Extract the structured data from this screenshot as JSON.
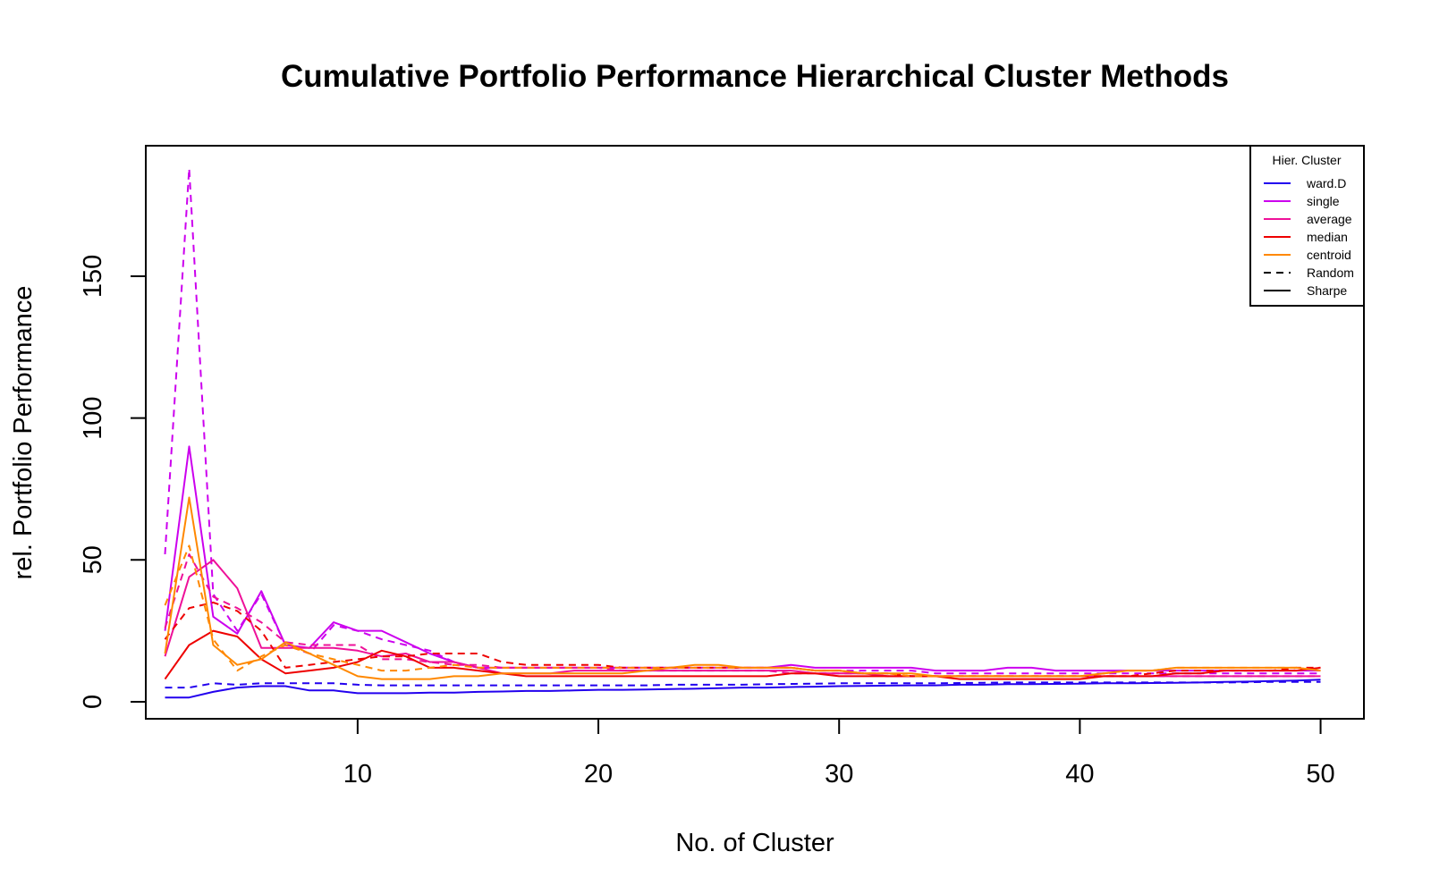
{
  "chart_data": {
    "type": "line",
    "title": "Cumulative Portfolio Performance Hierarchical Cluster Methods",
    "xlabel": "No. of Cluster",
    "ylabel": "rel. Portfolio Performance",
    "xlim": [
      1.2,
      51.8
    ],
    "ylim": [
      -6,
      196
    ],
    "x_ticks": [
      10,
      20,
      30,
      40,
      50
    ],
    "y_ticks": [
      0,
      50,
      100,
      150
    ],
    "grid": false,
    "legend": {
      "title": "Hier. Cluster",
      "placement": "top-right",
      "entries": [
        {
          "label": "ward.D",
          "color": "#2200ee",
          "dash": "solid"
        },
        {
          "label": "single",
          "color": "#cc00ee",
          "dash": "solid"
        },
        {
          "label": "average",
          "color": "#ee1199",
          "dash": "solid"
        },
        {
          "label": "median",
          "color": "#ee0000",
          "dash": "solid"
        },
        {
          "label": "centroid",
          "color": "#ff8800",
          "dash": "solid"
        },
        {
          "label": "Random",
          "color": "#000000",
          "dash": "dashed"
        },
        {
          "label": "Sharpe",
          "color": "#000000",
          "dash": "solid"
        }
      ]
    },
    "x": [
      2,
      3,
      4,
      5,
      6,
      7,
      8,
      9,
      10,
      11,
      12,
      13,
      14,
      15,
      16,
      17,
      18,
      19,
      20,
      21,
      22,
      23,
      24,
      25,
      26,
      27,
      28,
      29,
      30,
      31,
      32,
      33,
      34,
      35,
      36,
      37,
      38,
      39,
      40,
      41,
      42,
      43,
      44,
      45,
      46,
      47,
      48,
      49,
      50
    ],
    "series": [
      {
        "method": "ward.D",
        "type": "Sharpe",
        "color": "#2200ee",
        "dash": "solid",
        "values": [
          1.5,
          1.5,
          3.5,
          5,
          5.5,
          5.5,
          4,
          4,
          3,
          3,
          3,
          3.2,
          3.2,
          3.5,
          3.6,
          3.8,
          3.8,
          4,
          4.2,
          4.2,
          4.3,
          4.5,
          4.6,
          4.8,
          5,
          5,
          5.2,
          5.3,
          5.5,
          5.6,
          5.7,
          5.8,
          5.8,
          6,
          6,
          6.2,
          6.2,
          6.3,
          6.4,
          6.5,
          6.5,
          6.6,
          6.7,
          6.8,
          7,
          7.1,
          7.3,
          7.5,
          7.8
        ]
      },
      {
        "method": "ward.D",
        "type": "Random",
        "color": "#2200ee",
        "dash": "dashed",
        "values": [
          5,
          5,
          6.5,
          6,
          6.5,
          6.5,
          6.5,
          6.5,
          6,
          5.8,
          5.8,
          5.8,
          5.8,
          5.8,
          5.8,
          5.8,
          5.8,
          5.8,
          5.8,
          5.8,
          5.8,
          6,
          6,
          6,
          6,
          6.2,
          6.3,
          6.4,
          6.5,
          6.5,
          6.5,
          6.5,
          6.5,
          6.6,
          6.7,
          6.8,
          6.8,
          6.8,
          6.8,
          6.8,
          6.8,
          6.8,
          6.8,
          6.8,
          6.8,
          6.9,
          7,
          7,
          7
        ]
      },
      {
        "method": "single",
        "type": "Sharpe",
        "color": "#cc00ee",
        "dash": "solid",
        "values": [
          25,
          90,
          30,
          24,
          39,
          20,
          19,
          28,
          25,
          25,
          21,
          17,
          14,
          12,
          12,
          12,
          12,
          12,
          12,
          12,
          12,
          12,
          12,
          12,
          12,
          12,
          13,
          12,
          12,
          12,
          12,
          12,
          11,
          11,
          11,
          12,
          12,
          11,
          11,
          11,
          11,
          11,
          11,
          11,
          11,
          11,
          11,
          11,
          11
        ]
      },
      {
        "method": "single",
        "type": "Random",
        "color": "#cc00ee",
        "dash": "dashed",
        "values": [
          52,
          188,
          38,
          25,
          38,
          20,
          17,
          27,
          25,
          22,
          20,
          18,
          14,
          12,
          12,
          12,
          12,
          12,
          12,
          12,
          12,
          12,
          12,
          12,
          12,
          12,
          12,
          11,
          11,
          11,
          11,
          11,
          10,
          10,
          10,
          10,
          10,
          10,
          10,
          10,
          10,
          10,
          10,
          10,
          10,
          10,
          10,
          10,
          10
        ]
      },
      {
        "method": "average",
        "type": "Sharpe",
        "color": "#ee1199",
        "dash": "solid",
        "values": [
          16,
          44,
          50,
          40,
          19,
          19,
          19,
          19,
          18,
          16,
          17,
          14,
          14,
          12,
          10,
          10,
          10,
          11,
          11,
          11,
          11,
          11,
          11,
          11,
          11,
          11,
          11,
          10,
          10,
          10,
          9,
          9,
          9,
          9,
          9,
          9,
          9,
          9,
          9,
          9,
          9,
          9,
          9,
          9,
          9,
          9,
          9,
          9,
          9
        ]
      },
      {
        "method": "average",
        "type": "Random",
        "color": "#ee1199",
        "dash": "dashed",
        "values": [
          26,
          52,
          37,
          33,
          28,
          21,
          20,
          20,
          20,
          15,
          15,
          14,
          13,
          13,
          12,
          12,
          12,
          12,
          12,
          11,
          11,
          11,
          11,
          11,
          11,
          11,
          10,
          10,
          10,
          10,
          9,
          9,
          9,
          9,
          9,
          9,
          9,
          9,
          9,
          9,
          9,
          9,
          9,
          9,
          9,
          9,
          9,
          9,
          9
        ]
      },
      {
        "method": "median",
        "type": "Sharpe",
        "color": "#ee0000",
        "dash": "solid",
        "values": [
          8,
          20,
          25,
          23,
          15,
          10,
          11,
          12,
          14,
          18,
          16,
          12,
          12,
          11,
          10,
          9,
          9,
          9,
          9,
          9,
          9,
          9,
          9,
          9,
          9,
          9,
          10,
          10,
          9,
          9,
          9,
          9,
          9,
          8,
          8,
          8,
          8,
          8,
          8,
          9,
          9,
          9,
          10,
          10,
          11,
          11,
          11,
          11,
          12
        ]
      },
      {
        "method": "median",
        "type": "Random",
        "color": "#ee0000",
        "dash": "dashed",
        "values": [
          22,
          33,
          35,
          32,
          25,
          12,
          13,
          14,
          15,
          16,
          16,
          17,
          17,
          17,
          14,
          13,
          13,
          13,
          13,
          12,
          12,
          12,
          12,
          12,
          12,
          12,
          12,
          11,
          11,
          10,
          10,
          9,
          9,
          9,
          9,
          9,
          9,
          9,
          9,
          9,
          9,
          10,
          11,
          11,
          11,
          11,
          11,
          12,
          12
        ]
      },
      {
        "method": "centroid",
        "type": "Sharpe",
        "color": "#ff8800",
        "dash": "solid",
        "values": [
          17,
          72,
          20,
          13,
          15,
          21,
          17,
          13,
          9,
          8,
          8,
          8,
          9,
          9,
          10,
          10,
          10,
          10,
          10,
          10,
          11,
          12,
          13,
          13,
          12,
          12,
          12,
          11,
          11,
          10,
          10,
          10,
          9,
          9,
          9,
          9,
          9,
          9,
          9,
          10,
          11,
          11,
          12,
          12,
          12,
          12,
          12,
          12,
          11
        ]
      },
      {
        "method": "centroid",
        "type": "Random",
        "color": "#ff8800",
        "dash": "dashed",
        "values": [
          34,
          55,
          22,
          11,
          16,
          20,
          17,
          15,
          13,
          11,
          11,
          12,
          13,
          12,
          12,
          12,
          12,
          12,
          12,
          12,
          12,
          12,
          12,
          12,
          12,
          12,
          12,
          11,
          11,
          10,
          10,
          9,
          9,
          9,
          9,
          9,
          9,
          9,
          9,
          10,
          11,
          11,
          12,
          12,
          12,
          12,
          12,
          12,
          11
        ]
      }
    ]
  }
}
